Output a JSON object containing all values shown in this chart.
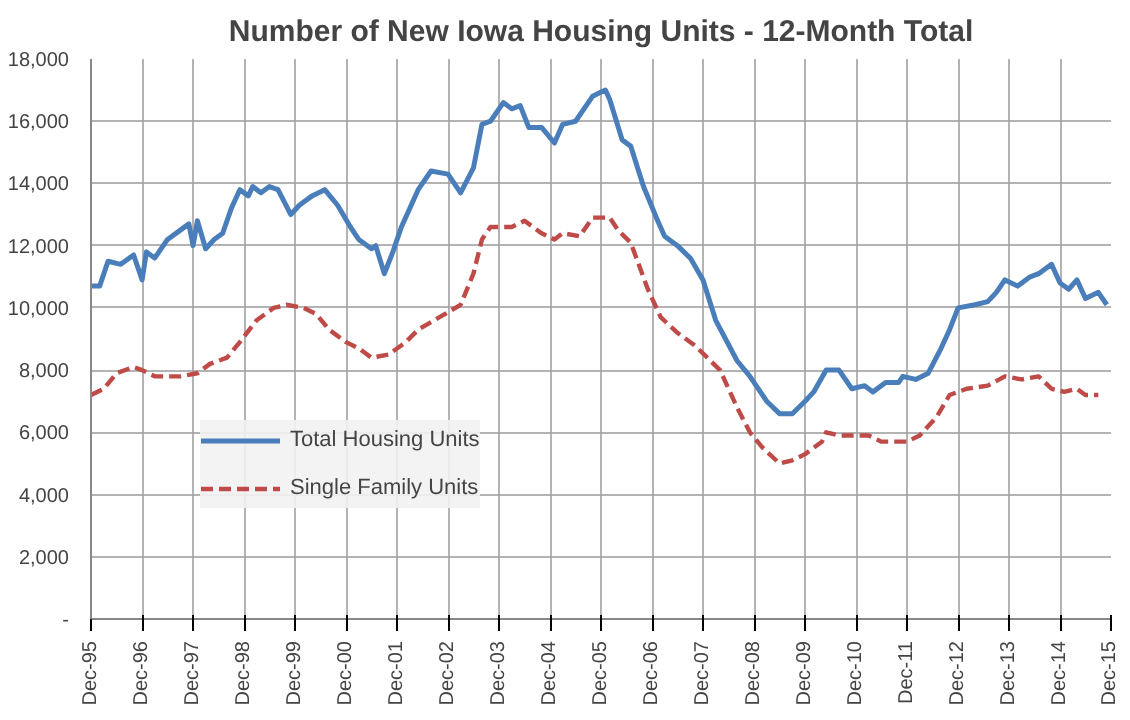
{
  "chart_data": {
    "type": "line",
    "title": "Number of New Iowa Housing Units - 12-Month Total",
    "xlim": [
      "1995-12",
      "2015-12"
    ],
    "xticks": [
      {
        "value": "1995-12",
        "label": "Dec-95"
      },
      {
        "value": "1996-12",
        "label": "Dec-96"
      },
      {
        "value": "1997-12",
        "label": "Dec-97"
      },
      {
        "value": "1998-12",
        "label": "Dec-98"
      },
      {
        "value": "1999-12",
        "label": "Dec-99"
      },
      {
        "value": "2000-12",
        "label": "Dec-00"
      },
      {
        "value": "2001-12",
        "label": "Dec-01"
      },
      {
        "value": "2002-12",
        "label": "Dec-02"
      },
      {
        "value": "2003-12",
        "label": "Dec-03"
      },
      {
        "value": "2004-12",
        "label": "Dec-04"
      },
      {
        "value": "2005-12",
        "label": "Dec-05"
      },
      {
        "value": "2006-12",
        "label": "Dec-06"
      },
      {
        "value": "2007-12",
        "label": "Dec-07"
      },
      {
        "value": "2008-12",
        "label": "Dec-08"
      },
      {
        "value": "2009-12",
        "label": "Dec-09"
      },
      {
        "value": "2010-12",
        "label": "Dec-10"
      },
      {
        "value": "2011-12",
        "label": "Dec-11"
      },
      {
        "value": "2012-12",
        "label": "Dec-12"
      },
      {
        "value": "2013-12",
        "label": "Dec-13"
      },
      {
        "value": "2014-12",
        "label": "Dec-14"
      },
      {
        "value": "2015-12",
        "label": "Dec-15"
      }
    ],
    "ylim": [
      0,
      18000
    ],
    "yticks": [
      {
        "value": 0,
        "label": "-"
      },
      {
        "value": 2000,
        "label": "2,000"
      },
      {
        "value": 4000,
        "label": "4,000"
      },
      {
        "value": 6000,
        "label": "6,000"
      },
      {
        "value": 8000,
        "label": "8,000"
      },
      {
        "value": 10000,
        "label": "10,000"
      },
      {
        "value": 12000,
        "label": "12,000"
      },
      {
        "value": 14000,
        "label": "14,000"
      },
      {
        "value": 16000,
        "label": "16,000"
      },
      {
        "value": 18000,
        "label": "18,000"
      }
    ],
    "grid": true,
    "legend": "bottom left",
    "marker": "none",
    "series": [
      {
        "name": "Total Housing Units",
        "color": "#4a7ebb",
        "line_style": "solid",
        "x": [
          "1995-12",
          "1996-02",
          "1996-04",
          "1996-07",
          "1996-10",
          "1996-12",
          "1997-01",
          "1997-03",
          "1997-06",
          "1997-09",
          "1997-11",
          "1997-12",
          "1998-01",
          "1998-03",
          "1998-05",
          "1998-07",
          "1998-09",
          "1998-11",
          "1999-01",
          "1999-02",
          "1999-04",
          "1999-06",
          "1999-08",
          "1999-11",
          "2000-01",
          "2000-04",
          "2000-07",
          "2000-10",
          "2001-01",
          "2001-03",
          "2001-06",
          "2001-07",
          "2001-09",
          "2001-11",
          "2002-01",
          "2002-05",
          "2002-08",
          "2002-12",
          "2003-03",
          "2003-06",
          "2003-08",
          "2003-10",
          "2004-01",
          "2004-03",
          "2004-05",
          "2004-07",
          "2004-10",
          "2005-01",
          "2005-03",
          "2005-06",
          "2005-10",
          "2006-01",
          "2006-02",
          "2006-05",
          "2006-07",
          "2006-10",
          "2007-01",
          "2007-03",
          "2007-06",
          "2007-09",
          "2007-12",
          "2008-03",
          "2008-08",
          "2008-11",
          "2009-03",
          "2009-06",
          "2009-09",
          "2009-12",
          "2010-02",
          "2010-05",
          "2010-08",
          "2010-11",
          "2011-02",
          "2011-04",
          "2011-07",
          "2011-10",
          "2011-11",
          "2012-02",
          "2012-05",
          "2012-08",
          "2012-10",
          "2012-12",
          "2013-04",
          "2013-07",
          "2013-09",
          "2013-11",
          "2014-02",
          "2014-05",
          "2014-07",
          "2014-10",
          "2014-12",
          "2015-02",
          "2015-04",
          "2015-06",
          "2015-09",
          "2015-11"
        ],
        "values": [
          10700,
          10700,
          11500,
          11400,
          11700,
          10900,
          11800,
          11600,
          12200,
          12500,
          12700,
          12000,
          12800,
          11900,
          12200,
          12400,
          13200,
          13800,
          13600,
          13900,
          13700,
          13900,
          13800,
          13000,
          13300,
          13600,
          13800,
          13300,
          12600,
          12200,
          11900,
          12000,
          11100,
          11800,
          12600,
          13800,
          14400,
          14300,
          13700,
          14500,
          15900,
          16000,
          16600,
          16400,
          16500,
          15800,
          15800,
          15300,
          15900,
          16000,
          16800,
          17000,
          16700,
          15400,
          15200,
          13900,
          12900,
          12300,
          12000,
          11600,
          10900,
          9600,
          8300,
          7800,
          7000,
          6600,
          6600,
          7000,
          7300,
          8000,
          8000,
          7400,
          7500,
          7300,
          7600,
          7600,
          7800,
          7700,
          7900,
          8700,
          9300,
          10000,
          10100,
          10200,
          10500,
          10900,
          10700,
          11000,
          11100,
          11400,
          10800,
          10600,
          10900,
          10300,
          10500,
          10100
        ]
      },
      {
        "name": "Single Family Units",
        "color": "#be4b48",
        "line_style": "dashed",
        "x": [
          "1995-12",
          "1996-03",
          "1996-06",
          "1996-10",
          "1996-12",
          "1997-03",
          "1997-06",
          "1997-09",
          "1998-01",
          "1998-04",
          "1998-08",
          "1998-11",
          "1999-03",
          "1999-07",
          "1999-10",
          "2000-02",
          "2000-05",
          "2000-08",
          "2000-12",
          "2001-03",
          "2001-06",
          "2001-10",
          "2002-02",
          "2002-05",
          "2002-10",
          "2003-03",
          "2003-06",
          "2003-08",
          "2003-10",
          "2004-03",
          "2004-06",
          "2004-10",
          "2005-01",
          "2005-03",
          "2005-07",
          "2005-10",
          "2006-02",
          "2006-04",
          "2006-07",
          "2006-11",
          "2007-02",
          "2007-06",
          "2007-10",
          "2008-01",
          "2008-04",
          "2008-08",
          "2008-11",
          "2009-02",
          "2009-06",
          "2009-09",
          "2009-12",
          "2010-04",
          "2010-05",
          "2010-08",
          "2010-11",
          "2011-03",
          "2011-06",
          "2011-10",
          "2011-12",
          "2012-03",
          "2012-07",
          "2012-10",
          "2013-02",
          "2013-07",
          "2013-11",
          "2014-03",
          "2014-07",
          "2014-10",
          "2015-01",
          "2015-04",
          "2015-06",
          "2015-09"
        ],
        "values": [
          7200,
          7400,
          7900,
          8100,
          8000,
          7800,
          7800,
          7800,
          7900,
          8200,
          8400,
          8900,
          9600,
          10000,
          10100,
          10000,
          9800,
          9300,
          8900,
          8700,
          8400,
          8500,
          8900,
          9300,
          9700,
          10100,
          11100,
          12200,
          12600,
          12600,
          12800,
          12400,
          12200,
          12400,
          12300,
          12900,
          12900,
          12500,
          12100,
          10600,
          9700,
          9200,
          8800,
          8400,
          8000,
          6800,
          6000,
          5500,
          5000,
          5100,
          5300,
          5700,
          6000,
          5900,
          5900,
          5900,
          5700,
          5700,
          5700,
          5900,
          6500,
          7200,
          7400,
          7500,
          7800,
          7700,
          7800,
          7400,
          7300,
          7400,
          7200,
          7200
        ]
      }
    ]
  }
}
